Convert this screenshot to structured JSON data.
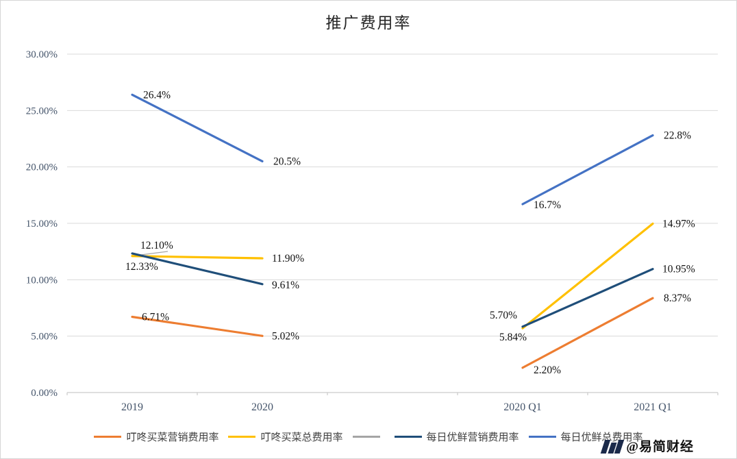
{
  "chart_data": {
    "type": "line",
    "title": "推广费用率",
    "categories": [
      "2019",
      "2020",
      "2020 Q1",
      "2021 Q1"
    ],
    "yticks": [
      "0.00%",
      "5.00%",
      "10.00%",
      "15.00%",
      "20.00%",
      "25.00%",
      "30.00%"
    ],
    "ylim": [
      0,
      30
    ],
    "grid": true,
    "legend_position": "bottom",
    "segments": [
      [
        0,
        1
      ],
      [
        2,
        3
      ]
    ],
    "series": [
      {
        "name": "叮咚买菜营销费用率",
        "color": "#ED7D31",
        "values": [
          6.71,
          5.02,
          2.2,
          8.37
        ],
        "labels": [
          "6.71%",
          "5.02%",
          "2.20%",
          "8.37%"
        ]
      },
      {
        "name": "叮咚买菜总费用率",
        "color": "#FFC000",
        "values": [
          12.1,
          11.9,
          5.7,
          14.97
        ],
        "labels": [
          "12.10%",
          "11.90%",
          "5.70%",
          "14.97%"
        ]
      },
      {
        "name": "",
        "color": "#A5A5A5",
        "values": [],
        "labels": []
      },
      {
        "name": "每日优鲜营销费用率",
        "color": "#1F4E79",
        "values": [
          12.33,
          9.61,
          5.84,
          10.95
        ],
        "labels": [
          "12.33%",
          "9.61%",
          "5.84%",
          "10.95%"
        ]
      },
      {
        "name": "每日优鲜总费用率",
        "color": "#4472C4",
        "values": [
          26.4,
          20.5,
          16.7,
          22.8
        ],
        "labels": [
          "26.4%",
          "20.5%",
          "16.7%",
          "22.8%"
        ]
      }
    ]
  },
  "watermark": {
    "handle": "@易简财经"
  }
}
